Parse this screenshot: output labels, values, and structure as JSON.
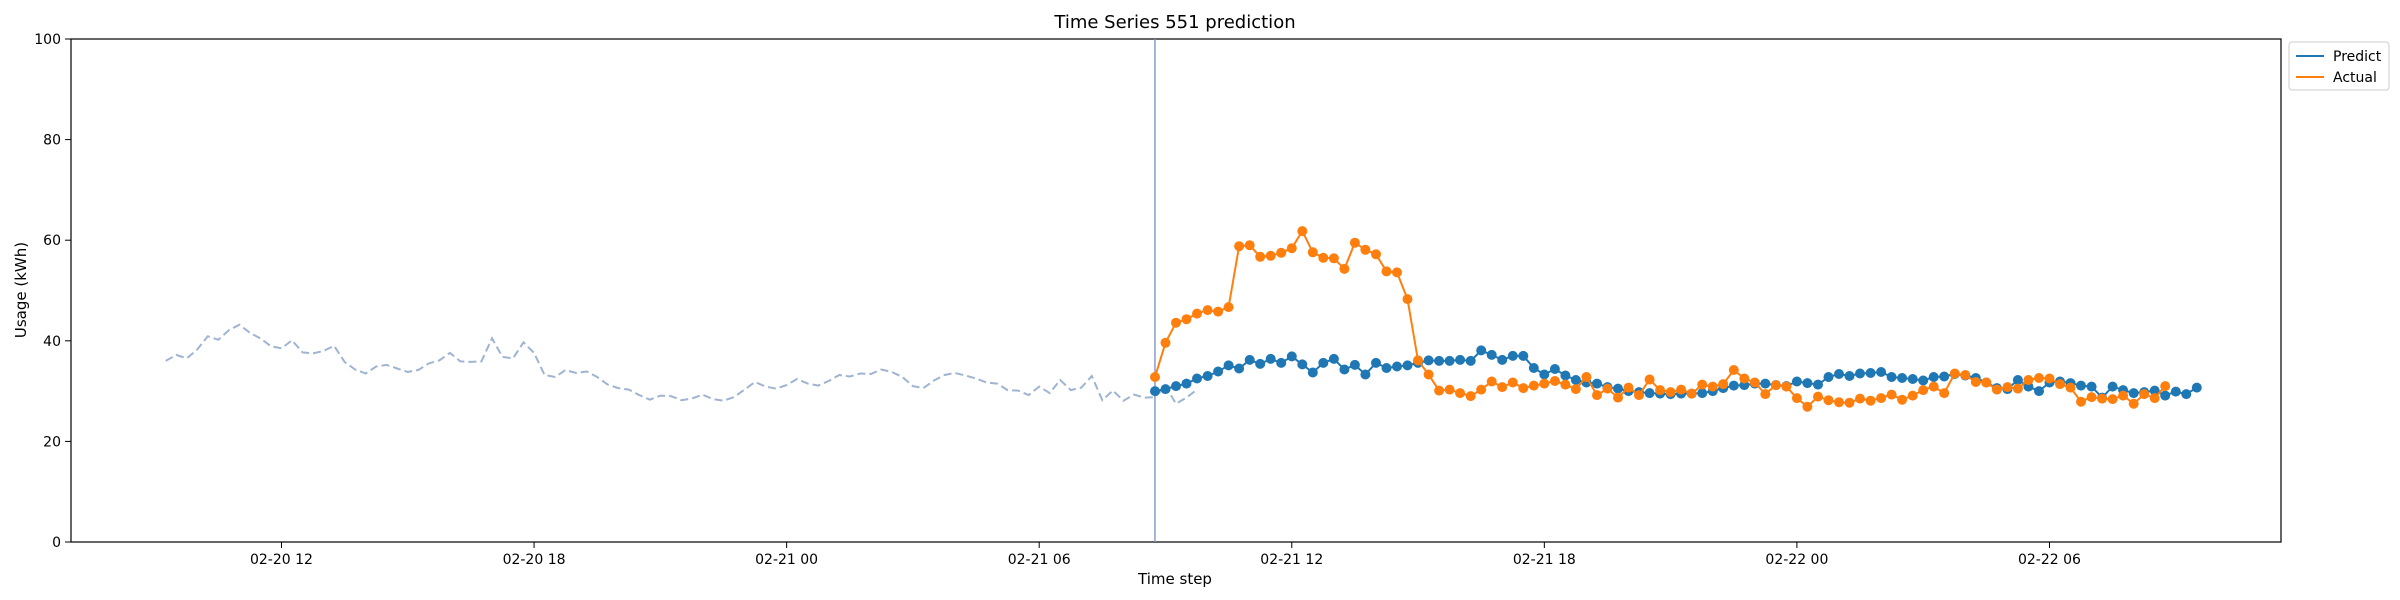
{
  "chart_data": {
    "type": "line",
    "title": "Time Series 551 prediction",
    "xlabel": "Time step",
    "ylabel": "Usage (kWh)",
    "ylim": [
      0,
      100
    ],
    "yticks": [
      0,
      20,
      40,
      60,
      80,
      100
    ],
    "xlim": [
      "2026-02-20 07:00",
      "2026-02-22 11:30"
    ],
    "xticks": [
      {
        "t": "2026-02-20 12:00",
        "label": "02-20 12"
      },
      {
        "t": "2026-02-20 18:00",
        "label": "02-20 18"
      },
      {
        "t": "2026-02-21 00:00",
        "label": "02-21 00"
      },
      {
        "t": "2026-02-21 06:00",
        "label": "02-21 06"
      },
      {
        "t": "2026-02-21 12:00",
        "label": "02-21 12"
      },
      {
        "t": "2026-02-21 18:00",
        "label": "02-21 18"
      },
      {
        "t": "2026-02-22 00:00",
        "label": "02-22 00"
      },
      {
        "t": "2026-02-22 06:00",
        "label": "02-22 06"
      }
    ],
    "grid": false,
    "legend_position": "top-right outside",
    "forecast_start": "2026-02-21 08:45",
    "history": {
      "start": "2026-02-20 09:15",
      "step_minutes": 15,
      "color": "#9fb4d1",
      "style": "dashed",
      "values": [
        36,
        37.2,
        36.5,
        38.3,
        40.9,
        40.2,
        42.1,
        43.2,
        41.6,
        40.5,
        38.9,
        38.5,
        40.1,
        37.7,
        37.5,
        38,
        39,
        35.8,
        34.3,
        33.5,
        34.9,
        35.2,
        34.5,
        33.8,
        34.2,
        35.5,
        36.1,
        37.6,
        35.9,
        35.8,
        35.9,
        40.5,
        36.8,
        36.5,
        39.7,
        37.6,
        33.2,
        32.8,
        34.2,
        33.6,
        33.9,
        32.8,
        31.3,
        30.6,
        30.3,
        29.2,
        28.3,
        29.1,
        29,
        28.2,
        28.5,
        29.3,
        28.4,
        28.1,
        28.8,
        30.3,
        31.8,
        30.9,
        30.5,
        31.2,
        32.4,
        31.5,
        31.1,
        32,
        33.2,
        32.9,
        33.5,
        33.4,
        34.3,
        33.8,
        32.8,
        31,
        30.6,
        32.1,
        33.2,
        33.6,
        33.1,
        32.5,
        31.7,
        31.5,
        30.2,
        30.1,
        29.2,
        30.9,
        29.6,
        32.2,
        30.2,
        30.7,
        33,
        28.2,
        30.1,
        28.1,
        29.3,
        28.7,
        28.8,
        31,
        27.5,
        28.7,
        30.3
      ]
    },
    "series": [
      {
        "name": "Predict",
        "color": "#1f77b4",
        "start": "2026-02-21 08:45",
        "step_minutes": 15,
        "values": [
          30,
          30.4,
          31,
          31.5,
          32.5,
          33,
          33.9,
          35.1,
          34.5,
          36.2,
          35.4,
          36.4,
          35.6,
          36.9,
          35.3,
          33.7,
          35.6,
          36.4,
          34.3,
          35.2,
          33.3,
          35.6,
          34.6,
          34.9,
          35.1,
          35.6,
          36.1,
          36,
          36,
          36.2,
          36,
          38.1,
          37.2,
          36.2,
          37,
          37,
          34.6,
          33.3,
          34.4,
          33.1,
          32.2,
          31.7,
          31.5,
          30.8,
          30.5,
          30,
          29.8,
          29.6,
          29.5,
          29.4,
          29.5,
          29.5,
          29.6,
          30,
          30.6,
          31.1,
          31.2,
          31.5,
          31.5,
          31.2,
          31,
          31.9,
          31.6,
          31.3,
          32.8,
          33.4,
          33,
          33.5,
          33.6,
          33.8,
          32.8,
          32.6,
          32.4,
          32.1,
          32.8,
          32.9,
          33.4,
          33.1,
          32.6,
          31.7,
          30.6,
          30.4,
          32.2,
          30.9,
          30,
          31.7,
          31.9,
          31.6,
          31.1,
          30.9,
          28.7,
          30.9,
          30.2,
          29.6,
          29.8,
          30.1,
          29.1,
          29.9,
          29.4,
          30.7
        ]
      },
      {
        "name": "Actual",
        "color": "#ff7f0e",
        "start": "2026-02-21 08:45",
        "step_minutes": 15,
        "values": [
          32.8,
          39.6,
          43.6,
          44.3,
          45.4,
          46.1,
          45.8,
          46.7,
          58.8,
          59,
          56.7,
          56.9,
          57.5,
          58.4,
          61.8,
          57.6,
          56.5,
          56.4,
          54.3,
          59.5,
          58.1,
          57.2,
          53.8,
          53.6,
          48.3,
          36.1,
          33.3,
          30.1,
          30.3,
          29.6,
          29,
          30.3,
          31.9,
          30.8,
          31.7,
          30.6,
          31.1,
          31.5,
          32,
          31.3,
          30.4,
          32.8,
          29.2,
          30.5,
          28.7,
          30.7,
          29.2,
          32.3,
          30.2,
          29.8,
          30.3,
          29.5,
          31.3,
          30.9,
          31.4,
          34.2,
          32.5,
          31.7,
          29.4,
          31.2,
          30.9,
          28.6,
          26.9,
          28.9,
          28.2,
          27.8,
          27.7,
          28.5,
          28.1,
          28.6,
          29.3,
          28.3,
          29.1,
          30.2,
          30.9,
          29.6,
          33.5,
          33.2,
          31.8,
          31.7,
          30.3,
          30.8,
          30.5,
          32.2,
          32.6,
          32.5,
          31.4,
          30.7,
          27.9,
          28.8,
          28.5,
          28.4,
          29.1,
          27.5,
          29.4,
          28.6,
          31
        ]
      }
    ],
    "legend": [
      "Predict",
      "Actual"
    ]
  }
}
